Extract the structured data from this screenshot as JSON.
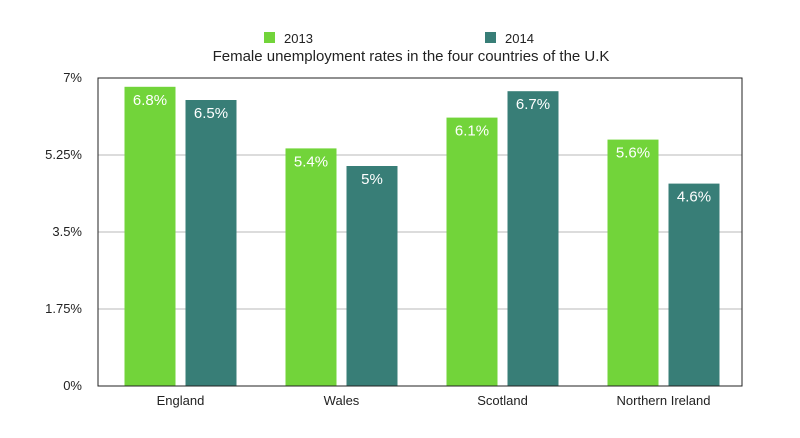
{
  "chart_data": {
    "type": "bar",
    "title": "Female unemployment rates in the four countries of the U.K",
    "xlabel": "",
    "ylabel": "",
    "categories": [
      "England",
      "Wales",
      "Scotland",
      "Northern Ireland"
    ],
    "series": [
      {
        "name": "2013",
        "color": "#72d43a",
        "values": [
          6.8,
          5.4,
          6.1,
          5.6
        ],
        "labels": [
          "6.8%",
          "5.4%",
          "6.1%",
          "5.6%"
        ]
      },
      {
        "name": "2014",
        "color": "#387e77",
        "values": [
          6.5,
          5.0,
          6.7,
          4.6
        ],
        "labels": [
          "6.5%",
          "5%",
          "6.7%",
          "4.6%"
        ]
      }
    ],
    "ylim": [
      0,
      7
    ],
    "yticks": [
      0,
      1.75,
      3.5,
      5.25,
      7
    ],
    "ytick_labels": [
      "0%",
      "1.75%",
      "3.5%",
      "5.25%",
      "7%"
    ],
    "grid": true,
    "legend_position": "top"
  }
}
